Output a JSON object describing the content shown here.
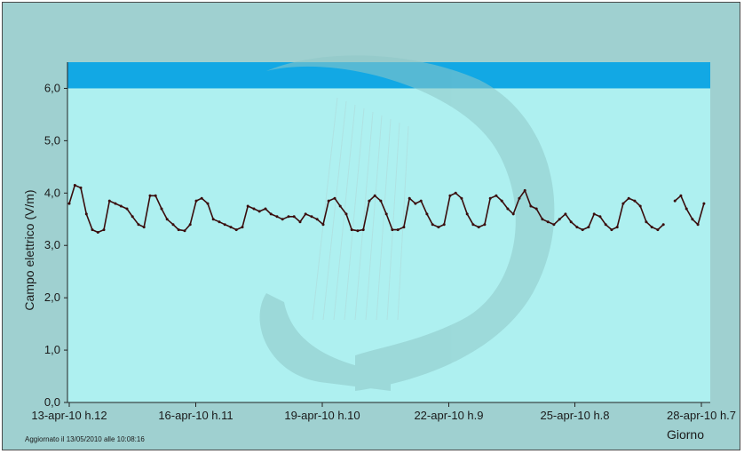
{
  "colors": {
    "frame_bg": "#9fd0d0",
    "plot_bg": "#aef0f0",
    "limit_band": "#12a8e4",
    "watermark": "#8fc8c8",
    "series_line": "#3a0d0d"
  },
  "footer": {
    "updated": "Aggiornato il 13/05/2010 alle 10:08:16"
  },
  "chart_data": {
    "type": "line",
    "title": "",
    "xlabel": "Giorno",
    "ylabel": "Campo elettrico (V/m)",
    "ylim": [
      0,
      6.5
    ],
    "xlim": [
      0,
      15
    ],
    "x_unit": "days since first tick",
    "y_ticks": [
      "0,0",
      "1,0",
      "2,0",
      "3,0",
      "4,0",
      "5,0",
      "6,0"
    ],
    "y_tick_values": [
      0,
      1,
      2,
      3,
      4,
      5,
      6
    ],
    "x_ticks": [
      "13-apr-10 h.12",
      "16-apr-10 h.11",
      "19-apr-10 h.10",
      "22-apr-10 h.9",
      "25-apr-10 h.8",
      "28-apr-10 h.7"
    ],
    "x_tick_values": [
      0,
      2.96,
      5.92,
      8.88,
      11.83,
      14.79
    ],
    "band": {
      "from": 6.0,
      "to": 6.5
    },
    "grid": false,
    "series": [
      {
        "name": "",
        "x": [
          0.0,
          0.13,
          0.27,
          0.4,
          0.54,
          0.67,
          0.81,
          0.94,
          1.08,
          1.21,
          1.35,
          1.48,
          1.62,
          1.75,
          1.89,
          2.02,
          2.16,
          2.29,
          2.43,
          2.56,
          2.7,
          2.83,
          2.97,
          3.1,
          3.24,
          3.37,
          3.51,
          3.64,
          3.78,
          3.91,
          4.05,
          4.18,
          4.32,
          4.45,
          4.59,
          4.72,
          4.86,
          4.99,
          5.13,
          5.26,
          5.4,
          5.53,
          5.67,
          5.8,
          5.94,
          6.07,
          6.21,
          6.34,
          6.48,
          6.61,
          6.75,
          6.88,
          7.02,
          7.15,
          7.29,
          7.42,
          7.56,
          7.69,
          7.83,
          7.96,
          8.1,
          8.23,
          8.37,
          8.5,
          8.64,
          8.77,
          8.91,
          9.04,
          9.18,
          9.31,
          9.45,
          9.58,
          9.72,
          9.85,
          9.99,
          10.12,
          10.26,
          10.39,
          10.53,
          10.66,
          10.8,
          10.93,
          11.07,
          11.2,
          11.34,
          11.47,
          11.61,
          11.74,
          11.88,
          12.01,
          12.15,
          12.28,
          12.42,
          12.55,
          12.69,
          12.82,
          12.96,
          13.09,
          13.23,
          13.36,
          13.5,
          13.63,
          13.77,
          13.9,
          14.04,
          14.17,
          14.31,
          14.44,
          14.58,
          14.71,
          14.85
        ],
        "values": [
          3.8,
          4.15,
          4.1,
          3.6,
          3.3,
          3.25,
          3.3,
          3.85,
          3.8,
          3.75,
          3.7,
          3.55,
          3.4,
          3.35,
          3.95,
          3.95,
          3.7,
          3.5,
          3.4,
          3.3,
          3.28,
          3.4,
          3.85,
          3.9,
          3.8,
          3.5,
          3.45,
          3.4,
          3.35,
          3.3,
          3.35,
          3.75,
          3.7,
          3.65,
          3.7,
          3.6,
          3.55,
          3.5,
          3.55,
          3.55,
          3.45,
          3.6,
          3.55,
          3.5,
          3.4,
          3.85,
          3.9,
          3.75,
          3.6,
          3.3,
          3.28,
          3.3,
          3.85,
          3.95,
          3.85,
          3.6,
          3.3,
          3.3,
          3.35,
          3.9,
          3.8,
          3.85,
          3.6,
          3.4,
          3.35,
          3.4,
          3.95,
          4.0,
          3.9,
          3.6,
          3.4,
          3.35,
          3.4,
          3.9,
          3.95,
          3.85,
          3.7,
          3.6,
          3.9,
          4.05,
          3.75,
          3.7,
          3.5,
          3.45,
          3.4,
          3.5,
          3.6,
          3.45,
          3.35,
          3.3,
          3.35,
          3.6,
          3.55,
          3.4,
          3.3,
          3.35,
          3.8,
          3.9,
          3.85,
          3.75,
          3.45,
          3.35,
          3.3,
          3.4,
          null,
          3.85,
          3.95,
          3.7,
          3.5,
          3.4,
          3.8
        ]
      }
    ]
  }
}
